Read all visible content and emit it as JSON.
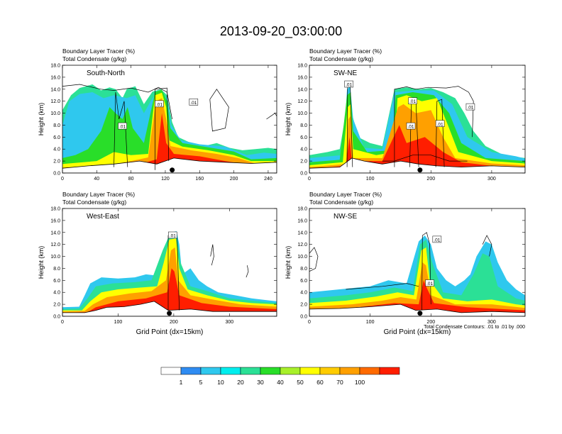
{
  "title": "2013-09-20_03:00:00",
  "footnote": "Total Condensate Contours: .01 to .01 by .000",
  "chart_data": [
    {
      "type": "heatmap",
      "panel_label": "South-North",
      "left_title_line1": "Boundary Layer Tracer   (%)",
      "left_title_line2": "Total Condensate   (g/kg)",
      "ylabel": "Height (km)",
      "xlabel": "",
      "xlim": [
        0,
        250
      ],
      "ylim": [
        0,
        18
      ],
      "xticks": [
        0,
        40,
        80,
        120,
        160,
        200,
        240
      ],
      "yticks": [
        "0.0",
        "2.0",
        "4.0",
        "6.0",
        "8.0",
        "10.0",
        "12.0",
        "14.0",
        "16.0",
        "18.0"
      ],
      "contour_labels": [
        {
          "text": ".01",
          "x": 113,
          "y": 11.5
        },
        {
          "text": ".01",
          "x": 153,
          "y": 11.8
        },
        {
          "text": ".01",
          "x": 70,
          "y": 7.8
        }
      ],
      "marker_x": 128
    },
    {
      "type": "heatmap",
      "panel_label": "SW-NE",
      "left_title_line1": "Boundary Layer Tracer   (%)",
      "left_title_line2": "Total Condensate   (g/kg)",
      "ylabel": "Height (km)",
      "xlabel": "",
      "xlim": [
        0,
        355
      ],
      "ylim": [
        0,
        18
      ],
      "xticks": [
        0,
        100,
        200,
        300
      ],
      "yticks": [
        "0.0",
        "2.0",
        "4.0",
        "6.0",
        "8.0",
        "10.0",
        "12.0",
        "14.0",
        "16.0",
        "18.0"
      ],
      "contour_labels": [
        {
          "text": ".01",
          "x": 65,
          "y": 14.8
        },
        {
          "text": ".01",
          "x": 170,
          "y": 12.0
        },
        {
          "text": ".01",
          "x": 167,
          "y": 7.8
        },
        {
          "text": ".01",
          "x": 215,
          "y": 8.2
        },
        {
          "text": ".01",
          "x": 265,
          "y": 11.0
        }
      ],
      "marker_x": 182
    },
    {
      "type": "heatmap",
      "panel_label": "West-East",
      "left_title_line1": "Boundary Layer Tracer   (%)",
      "left_title_line2": "Total Condensate   (g/kg)",
      "ylabel": "Height (km)",
      "xlabel": "Grid Point (dx=15km)",
      "xlim": [
        0,
        385
      ],
      "ylim": [
        0,
        18
      ],
      "xticks": [
        0,
        100,
        200,
        300
      ],
      "yticks": [
        "0.0",
        "2.0",
        "4.0",
        "6.0",
        "8.0",
        "10.0",
        "12.0",
        "14.0",
        "16.0",
        "18.0"
      ],
      "contour_labels": [
        {
          "text": ".01",
          "x": 198,
          "y": 13.5
        }
      ],
      "marker_x": 192
    },
    {
      "type": "heatmap",
      "panel_label": "NW-SE",
      "left_title_line1": "Boundary Layer Tracer   (%)",
      "left_title_line2": "Total Condensate   (g/kg)",
      "ylabel": "Height (km)",
      "xlabel": "Grid Point (dx=15km)",
      "xlim": [
        0,
        355
      ],
      "ylim": [
        0,
        18
      ],
      "xticks": [
        0,
        100,
        200,
        300
      ],
      "yticks": [
        "0.0",
        "2.0",
        "4.0",
        "6.0",
        "8.0",
        "10.0",
        "12.0",
        "14.0",
        "16.0",
        "18.0"
      ],
      "contour_labels": [
        {
          "text": ".01",
          "x": 210,
          "y": 12.8
        },
        {
          "text": ".01",
          "x": 198,
          "y": 5.5
        }
      ],
      "marker_x": 182
    }
  ],
  "colorbar": {
    "label": "Boundary Layer Tracer (%)",
    "colors": [
      "#ffffff",
      "#2f8cf2",
      "#2fc8ee",
      "#00eeee",
      "#2be096",
      "#29de29",
      "#a8f02a",
      "#ffff00",
      "#ffcc00",
      "#ffa000",
      "#ff6a00",
      "#ff1e00"
    ],
    "labels": [
      "1",
      "5",
      "10",
      "20",
      "30",
      "40",
      "50",
      "60",
      "70",
      "100"
    ]
  }
}
